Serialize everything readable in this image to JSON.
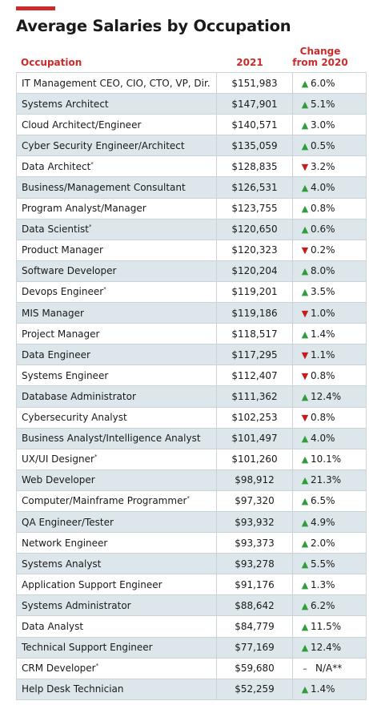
{
  "title": "Average Salaries by Occupation",
  "colors": {
    "accent": "#cc2b2b",
    "up": "#2e9e3a",
    "down": "#c71c1c",
    "na": "#222222",
    "stripe": "#dde6ea"
  },
  "headers": {
    "occupation": "Occupation",
    "year": "2021",
    "change_line1": "Change",
    "change_line2": "from 2020"
  },
  "chart_data": {
    "type": "table",
    "title": "Average Salaries by Occupation",
    "columns": [
      "Occupation",
      "2021",
      "Change from 2020"
    ],
    "rows": [
      {
        "occupation": "IT Management CEO, CIO, CTO, VP, Dir.",
        "mark": "",
        "salary": "$151,983",
        "dir": "up",
        "change": "6.0%"
      },
      {
        "occupation": "Systems Architect",
        "mark": "",
        "salary": "$147,901",
        "dir": "up",
        "change": "5.1%"
      },
      {
        "occupation": "Cloud Architect/Engineer",
        "mark": "",
        "salary": "$140,571",
        "dir": "up",
        "change": "3.0%"
      },
      {
        "occupation": "Cyber Security Engineer/Architect",
        "mark": "",
        "salary": "$135,059",
        "dir": "up",
        "change": "0.5%"
      },
      {
        "occupation": "Data Architect",
        "mark": "*",
        "salary": "$128,835",
        "dir": "down",
        "change": "3.2%"
      },
      {
        "occupation": "Business/Management Consultant",
        "mark": "",
        "salary": "$126,531",
        "dir": "up",
        "change": "4.0%"
      },
      {
        "occupation": "Program Analyst/Manager",
        "mark": "",
        "salary": "$123,755",
        "dir": "up",
        "change": "0.8%"
      },
      {
        "occupation": "Data Scientist",
        "mark": "*",
        "salary": "$120,650",
        "dir": "up",
        "change": "0.6%"
      },
      {
        "occupation": "Product Manager",
        "mark": "",
        "salary": "$120,323",
        "dir": "down",
        "change": "0.2%"
      },
      {
        "occupation": "Software Developer",
        "mark": "",
        "salary": "$120,204",
        "dir": "up",
        "change": "8.0%"
      },
      {
        "occupation": "Devops Engineer",
        "mark": "*",
        "salary": "$119,201",
        "dir": "up",
        "change": "3.5%"
      },
      {
        "occupation": "MIS Manager",
        "mark": "",
        "salary": "$119,186",
        "dir": "down",
        "change": "1.0%"
      },
      {
        "occupation": "Project Manager",
        "mark": "",
        "salary": "$118,517",
        "dir": "up",
        "change": "1.4%"
      },
      {
        "occupation": "Data Engineer",
        "mark": "",
        "salary": "$117,295",
        "dir": "down",
        "change": "1.1%"
      },
      {
        "occupation": "Systems Engineer",
        "mark": "",
        "salary": "$112,407",
        "dir": "down",
        "change": "0.8%"
      },
      {
        "occupation": "Database Administrator",
        "mark": "",
        "salary": "$111,362",
        "dir": "up",
        "change": "12.4%"
      },
      {
        "occupation": "Cybersecurity Analyst",
        "mark": "",
        "salary": "$102,253",
        "dir": "down",
        "change": "0.8%"
      },
      {
        "occupation": "Business Analyst/Intelligence Analyst",
        "mark": "",
        "salary": "$101,497",
        "dir": "up",
        "change": "4.0%"
      },
      {
        "occupation": "UX/UI Designer",
        "mark": "*",
        "salary": "$101,260",
        "dir": "up",
        "change": "10.1%"
      },
      {
        "occupation": "Web Developer",
        "mark": "",
        "salary": "$98,912",
        "dir": "up",
        "change": "21.3%"
      },
      {
        "occupation": "Computer/Mainframe Programmer",
        "mark": "*",
        "salary": "$97,320",
        "dir": "up",
        "change": "6.5%"
      },
      {
        "occupation": "QA Engineer/Tester",
        "mark": "",
        "salary": "$93,932",
        "dir": "up",
        "change": "4.9%"
      },
      {
        "occupation": "Network Engineer",
        "mark": "",
        "salary": "$93,373",
        "dir": "up",
        "change": "2.0%"
      },
      {
        "occupation": "Systems Analyst",
        "mark": "",
        "salary": "$93,278",
        "dir": "up",
        "change": "5.5%"
      },
      {
        "occupation": "Application Support Engineer",
        "mark": "",
        "salary": "$91,176",
        "dir": "up",
        "change": "1.3%"
      },
      {
        "occupation": "Systems Administrator",
        "mark": "",
        "salary": "$88,642",
        "dir": "up",
        "change": "6.2%"
      },
      {
        "occupation": "Data Analyst",
        "mark": "",
        "salary": "$84,779",
        "dir": "up",
        "change": "11.5%"
      },
      {
        "occupation": "Technical Support Engineer",
        "mark": "",
        "salary": "$77,169",
        "dir": "up",
        "change": "12.4%"
      },
      {
        "occupation": "CRM Developer",
        "mark": "*",
        "salary": "$59,680",
        "dir": "na",
        "change": "N/A**"
      },
      {
        "occupation": "Help Desk Technician",
        "mark": "",
        "salary": "$52,259",
        "dir": "up",
        "change": "1.4%"
      }
    ]
  }
}
